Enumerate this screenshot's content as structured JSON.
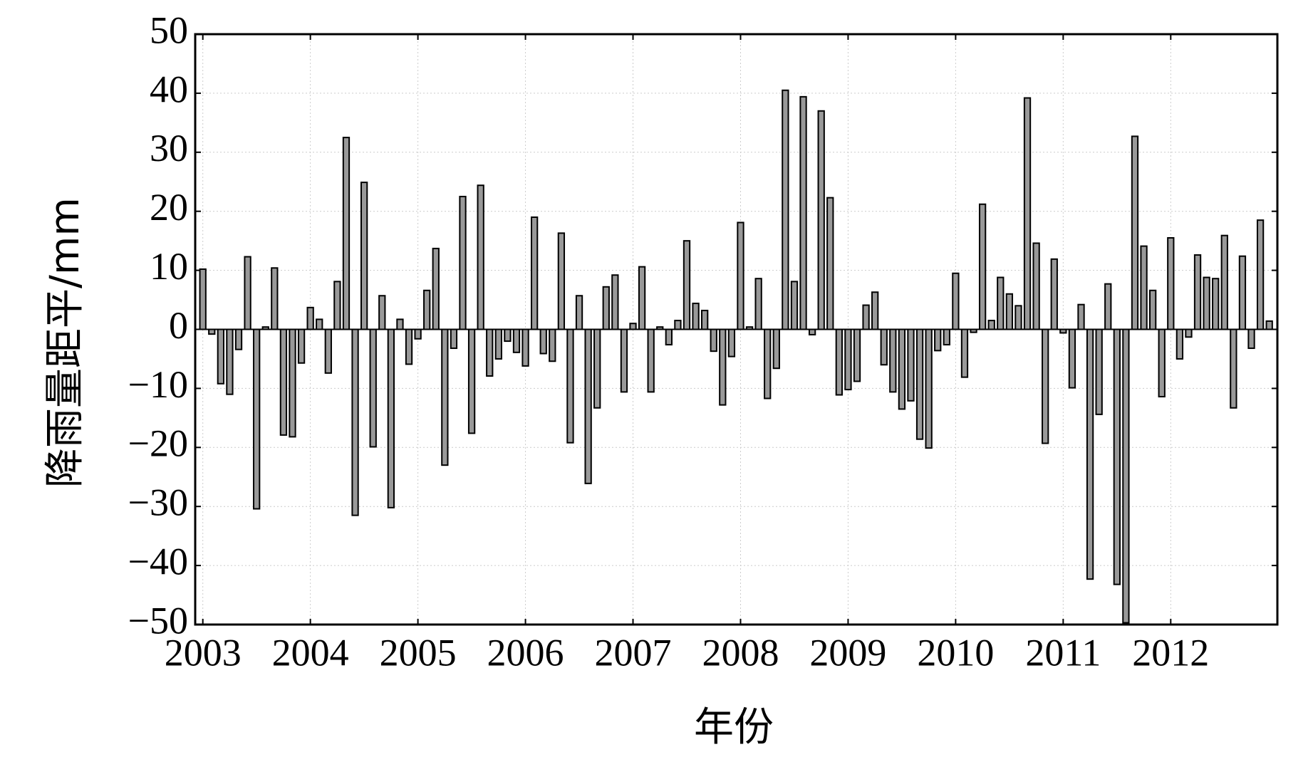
{
  "chart_data": {
    "type": "bar",
    "x_label": "年份",
    "y_label": "降雨量距平/mm",
    "color": "#999999",
    "grid": true,
    "categories": [
      "2003",
      null,
      null,
      null,
      null,
      null,
      null,
      null,
      null,
      null,
      null,
      null,
      "2004",
      null,
      null,
      null,
      null,
      null,
      null,
      null,
      null,
      null,
      null,
      null,
      "2005",
      null,
      null,
      null,
      null,
      null,
      null,
      null,
      null,
      null,
      null,
      null,
      "2006",
      null,
      null,
      null,
      null,
      null,
      null,
      null,
      null,
      null,
      null,
      null,
      "2007",
      null,
      null,
      null,
      null,
      null,
      null,
      null,
      null,
      null,
      null,
      null,
      "2008",
      null,
      null,
      null,
      null,
      null,
      null,
      null,
      null,
      null,
      null,
      null,
      "2009",
      null,
      null,
      null,
      null,
      null,
      null,
      null,
      null,
      null,
      null,
      null,
      "2010",
      null,
      null,
      null,
      null,
      null,
      null,
      null,
      null,
      null,
      null,
      null,
      "2011",
      null,
      null,
      null,
      null,
      null,
      null,
      null,
      null,
      null,
      null,
      null,
      "2012",
      null,
      null,
      null,
      null,
      null,
      null,
      null,
      null,
      null,
      null,
      null
    ],
    "values": [
      10.2,
      -0.8,
      -9.2,
      -11,
      -3.4,
      12.3,
      -30.4,
      0.4,
      10.4,
      -17.9,
      -18.2,
      -5.7,
      3.7,
      1.7,
      -7.4,
      8.1,
      32.5,
      -31.5,
      24.9,
      -19.9,
      5.7,
      -30.2,
      1.7,
      -5.9,
      -1.6,
      6.6,
      13.7,
      -23,
      -3.2,
      22.5,
      -17.6,
      24.4,
      -7.9,
      -5,
      -2,
      -3.9,
      -6.2,
      19,
      -4.1,
      -5.4,
      16.3,
      -19.2,
      5.7,
      -26.1,
      -13.3,
      7.2,
      9.2,
      -10.6,
      1,
      10.6,
      -10.6,
      0.4,
      -2.6,
      1.5,
      15,
      4.4,
      3.2,
      -3.7,
      -12.8,
      -4.6,
      18.1,
      0.4,
      8.6,
      -11.7,
      -6.6,
      40.5,
      8.1,
      39.4,
      -0.9,
      37,
      22.3,
      -11.1,
      -10.2,
      -8.8,
      4.1,
      6.3,
      -6,
      -10.6,
      -13.5,
      -12.1,
      -18.6,
      -20.1,
      -3.6,
      -2.6,
      9.5,
      -8.1,
      -0.5,
      21.2,
      1.5,
      8.8,
      6,
      4,
      39.2,
      14.6,
      -19.3,
      11.9,
      -0.6,
      -9.9,
      4.2,
      -42.3,
      -14.4,
      7.7,
      -43.2,
      -49.7,
      32.7,
      14.1,
      6.6,
      -11.4,
      15.5,
      -5,
      -1.3,
      12.6,
      8.8,
      8.6,
      15.9,
      -13.3,
      12.4,
      -3.2,
      18.5,
      1.4
    ],
    "ylim": [
      -50,
      50
    ],
    "yticks": [
      {
        "value": -50,
        "label": "−50"
      },
      {
        "value": -40,
        "label": "−40"
      },
      {
        "value": -30,
        "label": "−30"
      },
      {
        "value": -20,
        "label": "−20"
      },
      {
        "value": -10,
        "label": "−10"
      },
      0,
      10,
      20,
      30,
      40,
      50
    ]
  }
}
